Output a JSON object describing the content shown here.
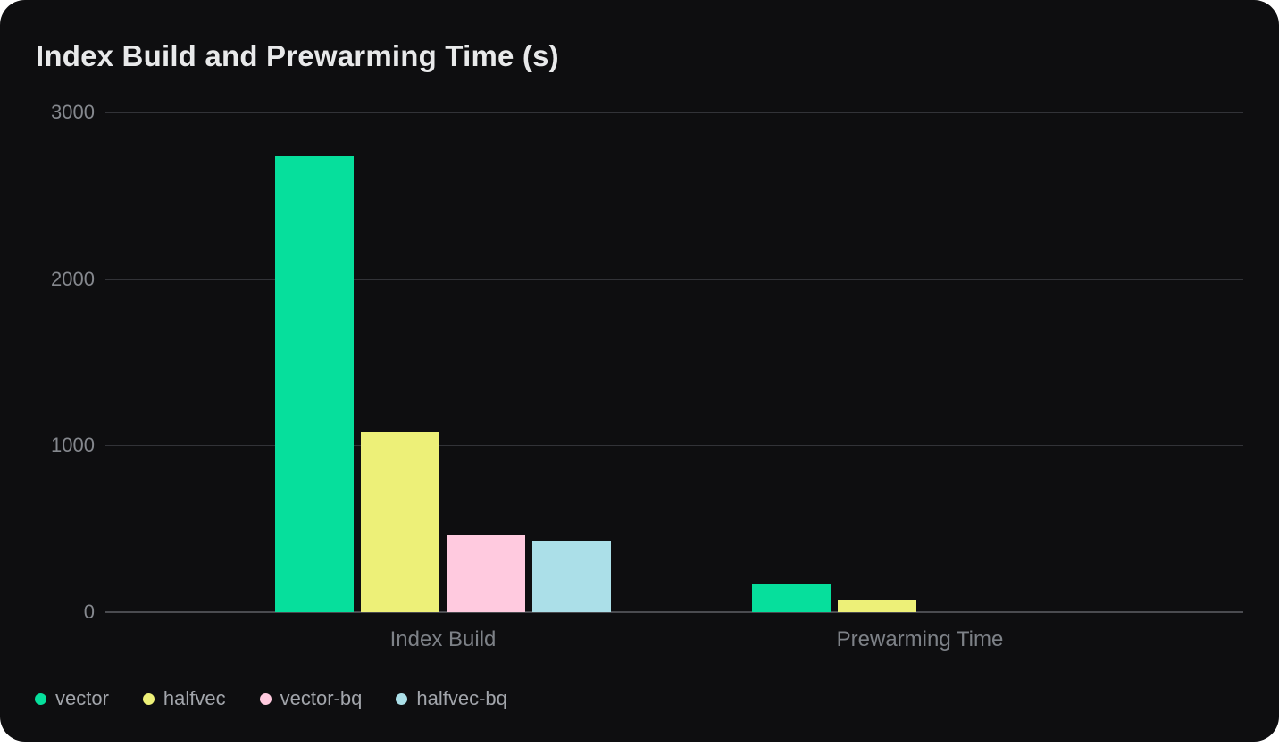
{
  "title": "Index Build and Prewarming Time (s)",
  "colors": {
    "page_background": "#ffffff",
    "card_background": "#0e0e10",
    "title_text": "#e8e9ea",
    "axis_tick_text": "#85888e",
    "category_label_text": "#7d8187",
    "legend_text": "#a2a5ab",
    "gridline": "#323338",
    "baseline": "#4a4b50"
  },
  "chart_data": {
    "type": "bar",
    "title": "Index Build and Prewarming Time (s)",
    "categories": [
      "Index Build",
      "Prewarming Time"
    ],
    "series": [
      {
        "name": "vector",
        "color": "#06df9c",
        "values": [
          2737,
          170
        ]
      },
      {
        "name": "halfvec",
        "color": "#edf078",
        "values": [
          1083,
          77
        ]
      },
      {
        "name": "vector-bq",
        "color": "#ffcadf",
        "values": [
          461,
          0
        ]
      },
      {
        "name": "halfvec-bq",
        "color": "#abdfe8",
        "values": [
          430,
          0
        ]
      }
    ],
    "xlabel": "",
    "ylabel": "",
    "ylim": [
      0,
      3000
    ],
    "yticks": [
      0,
      1000,
      2000,
      3000
    ],
    "grid": true,
    "legend_position": "bottom-left"
  }
}
